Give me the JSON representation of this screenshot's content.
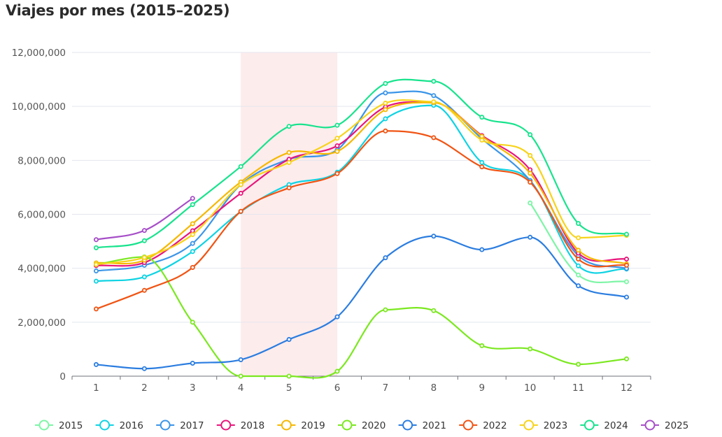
{
  "chart_data": {
    "type": "line",
    "title": "Viajes por mes (2015–2025)",
    "xlabel": "",
    "ylabel": "",
    "categories": [
      "1",
      "2",
      "3",
      "4",
      "5",
      "6",
      "7",
      "8",
      "9",
      "10",
      "11",
      "12"
    ],
    "x": [
      1,
      2,
      3,
      4,
      5,
      6,
      7,
      8,
      9,
      10,
      11,
      12
    ],
    "ylim": [
      0,
      12000000
    ],
    "yticks": [
      0,
      2000000,
      4000000,
      6000000,
      8000000,
      10000000,
      12000000
    ],
    "ytick_labels": [
      "0",
      "2,000,000",
      "4,000,000",
      "6,000,000",
      "8,000,000",
      "10,000,000",
      "12,000,000"
    ],
    "grid": true,
    "legend_position": "bottom",
    "highlight_band": {
      "x_from": 4,
      "x_to": 6,
      "color": "#fdecec"
    },
    "series": [
      {
        "name": "2015",
        "color": "#7df5a6",
        "values": [
          null,
          null,
          null,
          null,
          null,
          null,
          null,
          null,
          null,
          6420000,
          3750000,
          3500000
        ]
      },
      {
        "name": "2016",
        "color": "#0fd3e3",
        "values": [
          3520000,
          3680000,
          4620000,
          6100000,
          7100000,
          7560000,
          9540000,
          10040000,
          7920000,
          7250000,
          4090000,
          3970000
        ]
      },
      {
        "name": "2017",
        "color": "#3b95e8",
        "values": [
          3900000,
          4110000,
          4920000,
          7100000,
          8040000,
          8390000,
          10500000,
          10400000,
          8800000,
          7250000,
          4470000,
          3990000
        ]
      },
      {
        "name": "2018",
        "color": "#e8157b",
        "values": [
          4100000,
          4210000,
          5390000,
          6780000,
          8040000,
          8540000,
          9980000,
          10140000,
          8920000,
          7650000,
          4560000,
          4340000
        ]
      },
      {
        "name": "2019",
        "color": "#f5b800",
        "values": [
          4200000,
          4300000,
          5650000,
          7200000,
          8290000,
          8330000,
          9880000,
          10140000,
          8890000,
          7520000,
          4670000,
          4160000
        ]
      },
      {
        "name": "2020",
        "color": "#7be81f",
        "values": [
          4140000,
          4420000,
          2000000,
          0,
          0,
          180000,
          2460000,
          2430000,
          1130000,
          1010000,
          440000,
          640000
        ]
      },
      {
        "name": "2021",
        "color": "#2b7de0",
        "values": [
          430000,
          280000,
          480000,
          610000,
          1360000,
          2200000,
          4390000,
          5190000,
          4690000,
          5150000,
          3350000,
          2930000
        ]
      },
      {
        "name": "2022",
        "color": "#f05414",
        "values": [
          2490000,
          3180000,
          4030000,
          6110000,
          6980000,
          7510000,
          9090000,
          8840000,
          7760000,
          7190000,
          4340000,
          4110000
        ]
      },
      {
        "name": "2023",
        "color": "#f7d31a",
        "values": [
          4140000,
          4400000,
          5250000,
          7100000,
          7920000,
          8820000,
          10120000,
          10170000,
          8750000,
          8180000,
          5130000,
          5220000
        ]
      },
      {
        "name": "2024",
        "color": "#18e38d",
        "values": [
          4760000,
          5020000,
          6360000,
          7770000,
          9260000,
          9300000,
          10850000,
          10930000,
          9600000,
          8950000,
          5660000,
          5260000
        ]
      },
      {
        "name": "2025",
        "color": "#a64fc8",
        "values": [
          5060000,
          5400000,
          6590000,
          null,
          null,
          null,
          null,
          null,
          null,
          null,
          null,
          null
        ]
      }
    ]
  }
}
